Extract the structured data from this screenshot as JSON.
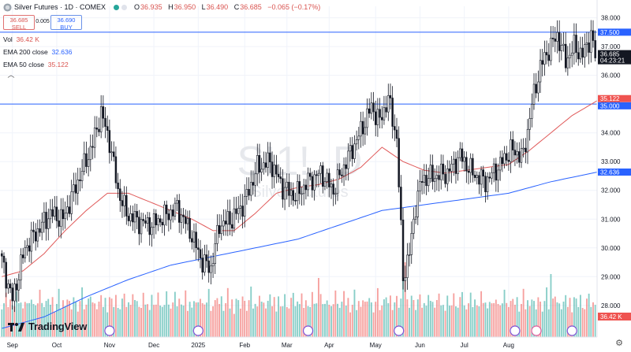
{
  "header": {
    "title": "Silver Futures · 1D · COMEX",
    "ohlc": {
      "o_label": "O",
      "o_value": "36.935",
      "h_label": "H",
      "h_value": "36.950",
      "l_label": "L",
      "l_value": "36.490",
      "c_label": "C",
      "c_value": "36.685",
      "change": "−0.065 (−0.17%)"
    }
  },
  "trade": {
    "sell_price": "36.685",
    "sell_label": "SELL",
    "spread": "0.005",
    "buy_price": "36.690",
    "buy_label": "BUY"
  },
  "indicators": {
    "vol_label": "Vol",
    "vol_value": "36.42 K",
    "ema200_label": "EMA 200 close",
    "ema200_value": "32.636",
    "ema50_label": "EMA 50 close",
    "ema50_value": "35.122"
  },
  "watermark": {
    "symbol": "SI1!, D",
    "name": "Silver Futures"
  },
  "branding": {
    "logo_text": "TradingView"
  },
  "colors": {
    "up": "#26a69a",
    "down": "#ef5350",
    "ema50": "#e05a5a",
    "ema200": "#2962ff",
    "hline": "#2962ff",
    "vol_up": "#26a69a",
    "vol_down": "#ef5350"
  },
  "chart_data": {
    "type": "candlestick",
    "y_axis": {
      "ticks": [
        "38.000",
        "37.000",
        "36.000",
        "35.000",
        "34.000",
        "33.000",
        "32.000",
        "31.000",
        "30.000",
        "29.000",
        "28.000"
      ],
      "min": 26.9,
      "max": 38.4
    },
    "x_axis": {
      "ticks": [
        "Sep",
        "Oct",
        "Nov",
        "Dec",
        "2025",
        "Feb",
        "Mar",
        "Apr",
        "May",
        "Jun",
        "Jul",
        "Aug"
      ]
    },
    "price_labels": {
      "current": "36.685",
      "countdown": "04:23:21",
      "resistance": "37.500",
      "ema50": "35.122",
      "support": "35.000",
      "ema200": "32.636",
      "volume": "36.42 K"
    },
    "horizontal_lines": [
      37.5,
      35.0
    ],
    "price_path": [
      [
        0,
        29.8
      ],
      [
        6,
        28.2
      ],
      [
        12,
        30.0
      ],
      [
        18,
        30.6
      ],
      [
        24,
        31.2
      ],
      [
        30,
        31.0
      ],
      [
        38,
        32.5
      ],
      [
        44,
        33.6
      ],
      [
        48,
        34.7
      ],
      [
        52,
        33.7
      ],
      [
        56,
        32.0
      ],
      [
        60,
        31.2
      ],
      [
        66,
        30.9
      ],
      [
        72,
        30.8
      ],
      [
        78,
        31.1
      ],
      [
        84,
        31.4
      ],
      [
        90,
        30.6
      ],
      [
        96,
        29.5
      ],
      [
        100,
        29.3
      ],
      [
        104,
        30.8
      ],
      [
        110,
        31.0
      ],
      [
        116,
        31.6
      ],
      [
        122,
        32.8
      ],
      [
        128,
        33.0
      ],
      [
        134,
        32.1
      ],
      [
        140,
        31.8
      ],
      [
        146,
        32.3
      ],
      [
        152,
        32.6
      ],
      [
        158,
        32.0
      ],
      [
        164,
        33.0
      ],
      [
        170,
        33.9
      ],
      [
        176,
        34.9
      ],
      [
        180,
        34.4
      ],
      [
        184,
        35.2
      ],
      [
        188,
        33.8
      ],
      [
        191,
        29.0
      ],
      [
        194,
        29.8
      ],
      [
        197,
        31.5
      ],
      [
        200,
        32.4
      ],
      [
        206,
        32.5
      ],
      [
        212,
        32.6
      ],
      [
        218,
        33.2
      ],
      [
        224,
        32.6
      ],
      [
        230,
        32.3
      ],
      [
        236,
        32.8
      ],
      [
        242,
        33.4
      ],
      [
        248,
        33.2
      ],
      [
        252,
        35.0
      ],
      [
        256,
        36.3
      ],
      [
        260,
        36.9
      ],
      [
        264,
        37.4
      ],
      [
        268,
        36.5
      ],
      [
        272,
        37.0
      ],
      [
        276,
        36.7
      ],
      [
        280,
        37.4
      ],
      [
        282,
        36.68
      ]
    ],
    "ema50_path": [
      [
        0,
        29.0
      ],
      [
        10,
        29.2
      ],
      [
        20,
        29.8
      ],
      [
        30,
        30.6
      ],
      [
        40,
        31.3
      ],
      [
        50,
        31.9
      ],
      [
        60,
        31.9
      ],
      [
        70,
        31.6
      ],
      [
        80,
        31.3
      ],
      [
        90,
        31.0
      ],
      [
        100,
        30.6
      ],
      [
        110,
        30.6
      ],
      [
        120,
        31.2
      ],
      [
        130,
        31.9
      ],
      [
        140,
        32.1
      ],
      [
        150,
        32.2
      ],
      [
        160,
        32.4
      ],
      [
        170,
        32.8
      ],
      [
        180,
        33.5
      ],
      [
        190,
        33.0
      ],
      [
        200,
        32.7
      ],
      [
        210,
        32.6
      ],
      [
        220,
        32.7
      ],
      [
        230,
        32.8
      ],
      [
        240,
        32.9
      ],
      [
        250,
        33.4
      ],
      [
        260,
        34.0
      ],
      [
        270,
        34.6
      ],
      [
        282,
        35.122
      ]
    ],
    "ema200_path": [
      [
        0,
        27.2
      ],
      [
        20,
        27.6
      ],
      [
        40,
        28.3
      ],
      [
        60,
        28.9
      ],
      [
        80,
        29.4
      ],
      [
        100,
        29.7
      ],
      [
        120,
        30.0
      ],
      [
        140,
        30.3
      ],
      [
        160,
        30.8
      ],
      [
        180,
        31.3
      ],
      [
        200,
        31.5
      ],
      [
        220,
        31.7
      ],
      [
        240,
        31.9
      ],
      [
        260,
        32.3
      ],
      [
        282,
        32.636
      ]
    ],
    "volume_pattern": [
      0.45,
      0.55,
      0.8,
      0.5,
      0.65,
      0.35,
      0.5,
      0.9,
      0.4,
      0.6,
      0.3,
      0.7,
      0.55,
      0.45,
      0.75,
      0.5,
      0.35,
      0.6,
      0.95,
      0.4
    ],
    "xlabel": "",
    "ylabel": ""
  }
}
